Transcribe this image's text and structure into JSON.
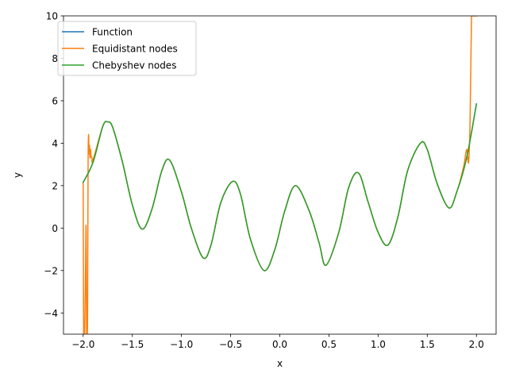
{
  "chart_data": {
    "type": "line",
    "title": "",
    "xlabel": "x",
    "ylabel": "y",
    "xlim": [
      -2.2,
      2.2
    ],
    "ylim": [
      -5,
      10
    ],
    "grid": false,
    "legend_position": "top-left",
    "x_ticks": [
      -2.0,
      -1.5,
      -1.0,
      -0.5,
      0.0,
      0.5,
      1.0,
      1.5,
      2.0
    ],
    "x_tick_labels": [
      "−2.0",
      "−1.5",
      "−1.0",
      "−0.5",
      "0.0",
      "0.5",
      "1.0",
      "1.5",
      "2.0"
    ],
    "y_ticks": [
      -4,
      -2,
      0,
      2,
      4,
      6,
      8,
      10
    ],
    "y_tick_labels": [
      "−4",
      "−2",
      "0",
      "2",
      "4",
      "6",
      "8",
      "10"
    ],
    "series": [
      {
        "name": "Function",
        "color": "#1f77b4",
        "x": [
          -2.0,
          -1.9,
          -1.8,
          -1.75,
          -1.7,
          -1.6,
          -1.5,
          -1.4,
          -1.3,
          -1.2,
          -1.12,
          -1.0,
          -0.9,
          -0.78,
          -0.7,
          -0.6,
          -0.48,
          -0.4,
          -0.3,
          -0.16,
          -0.05,
          0.05,
          0.16,
          0.3,
          0.4,
          0.47,
          0.6,
          0.7,
          0.8,
          0.9,
          1.0,
          1.1,
          1.2,
          1.3,
          1.43,
          1.5,
          1.6,
          1.72,
          1.8,
          1.9,
          2.0
        ],
        "y": [
          2.15,
          3.1,
          4.8,
          5.0,
          4.75,
          3.1,
          1.1,
          -0.05,
          0.9,
          2.7,
          3.2,
          1.7,
          0.0,
          -1.4,
          -0.8,
          1.2,
          2.2,
          1.6,
          -0.5,
          -2.0,
          -1.0,
          0.8,
          2.0,
          0.8,
          -0.7,
          -1.75,
          -0.2,
          1.9,
          2.6,
          1.2,
          -0.2,
          -0.8,
          0.5,
          2.7,
          4.0,
          3.7,
          2.1,
          0.95,
          1.7,
          3.3,
          5.85
        ]
      },
      {
        "name": "Equidistant nodes",
        "color": "#ff7f0e",
        "x": [
          -2.0,
          -1.995,
          -1.99,
          -1.985,
          -1.98,
          -1.975,
          -1.97,
          -1.965,
          -1.96,
          -1.955,
          -1.95,
          -1.945,
          -1.94,
          -1.935,
          -1.93,
          -1.925,
          -1.92,
          -1.91,
          -1.9,
          -1.8,
          -1.75,
          -1.7,
          -1.6,
          -1.5,
          -1.4,
          -1.3,
          -1.2,
          -1.12,
          -1.0,
          -0.9,
          -0.78,
          -0.7,
          -0.6,
          -0.48,
          -0.4,
          -0.3,
          -0.16,
          -0.05,
          0.05,
          0.16,
          0.3,
          0.4,
          0.47,
          0.6,
          0.7,
          0.8,
          0.9,
          1.0,
          1.1,
          1.2,
          1.3,
          1.43,
          1.5,
          1.6,
          1.72,
          1.8,
          1.87,
          1.9,
          1.92,
          1.935,
          1.95,
          1.96,
          2.0
        ],
        "y": [
          2.1,
          -5.0,
          -5.0,
          -5.0,
          -3.5,
          -1.5,
          0.0,
          -5.0,
          -5.0,
          -4.0,
          3.0,
          4.4,
          3.5,
          3.9,
          3.3,
          3.7,
          3.4,
          3.3,
          3.2,
          4.8,
          5.0,
          4.75,
          3.1,
          1.1,
          -0.05,
          0.9,
          2.7,
          3.2,
          1.7,
          0.0,
          -1.4,
          -0.8,
          1.2,
          2.2,
          1.6,
          -0.5,
          -2.0,
          -1.0,
          0.8,
          2.0,
          0.8,
          -0.7,
          -1.75,
          -0.2,
          1.9,
          2.6,
          1.2,
          -0.2,
          -0.8,
          0.5,
          2.7,
          4.0,
          3.7,
          2.1,
          0.95,
          1.7,
          2.9,
          3.7,
          3.1,
          5.0,
          10.0,
          10.0,
          10.0
        ]
      },
      {
        "name": "Chebyshev nodes",
        "color": "#2ca02c",
        "x": [
          -2.0,
          -1.9,
          -1.8,
          -1.75,
          -1.7,
          -1.6,
          -1.5,
          -1.4,
          -1.3,
          -1.2,
          -1.12,
          -1.0,
          -0.9,
          -0.78,
          -0.7,
          -0.6,
          -0.48,
          -0.4,
          -0.3,
          -0.16,
          -0.05,
          0.05,
          0.16,
          0.3,
          0.4,
          0.47,
          0.6,
          0.7,
          0.8,
          0.9,
          1.0,
          1.1,
          1.2,
          1.3,
          1.43,
          1.5,
          1.6,
          1.72,
          1.8,
          1.9,
          2.0
        ],
        "y": [
          2.15,
          3.1,
          4.8,
          5.0,
          4.75,
          3.1,
          1.1,
          -0.05,
          0.9,
          2.7,
          3.2,
          1.7,
          0.0,
          -1.4,
          -0.8,
          1.2,
          2.2,
          1.6,
          -0.5,
          -2.0,
          -1.0,
          0.8,
          2.0,
          0.8,
          -0.7,
          -1.75,
          -0.2,
          1.9,
          2.6,
          1.2,
          -0.2,
          -0.8,
          0.5,
          2.7,
          4.0,
          3.7,
          2.1,
          0.95,
          1.7,
          3.3,
          5.85
        ]
      }
    ]
  }
}
